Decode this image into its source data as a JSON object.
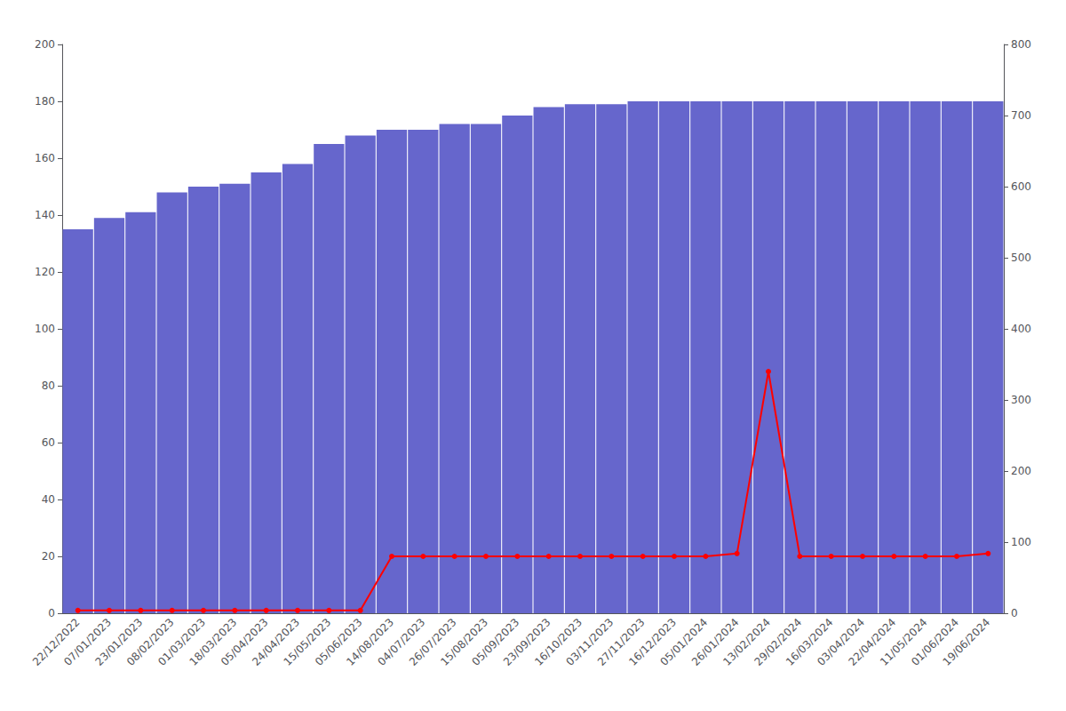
{
  "chart_data": {
    "type": "bar",
    "categories": [
      "22/12/2022",
      "07/01/2023",
      "23/01/2023",
      "08/02/2023",
      "01/03/2023",
      "18/03/2023",
      "05/04/2023",
      "24/04/2023",
      "15/05/2023",
      "05/06/2023",
      "14/08/2023",
      "04/07/2023",
      "26/07/2023",
      "15/08/2023",
      "05/09/2023",
      "23/09/2023",
      "16/10/2023",
      "03/11/2023",
      "27/11/2023",
      "16/12/2023",
      "05/01/2024",
      "26/01/2024",
      "13/02/2024",
      "29/02/2024",
      "16/03/2024",
      "03/04/2024",
      "22/04/2024",
      "11/05/2024",
      "01/06/2024",
      "19/06/2024"
    ],
    "series": [
      {
        "type": "bar",
        "color": "#6666cc",
        "values": [
          135,
          139,
          141,
          148,
          150,
          151,
          155,
          158,
          165,
          168,
          170,
          170,
          172,
          172,
          175,
          178,
          179,
          179,
          180,
          180,
          180,
          180,
          180,
          180,
          180,
          180,
          180,
          180,
          180,
          180
        ]
      },
      {
        "type": "line",
        "color": "#ff0000",
        "marker": "circle",
        "values": [
          1,
          1,
          1,
          1,
          1,
          1,
          1,
          1,
          1,
          1,
          20,
          20,
          20,
          20,
          20,
          20,
          20,
          20,
          20,
          20,
          20,
          21,
          85,
          20,
          20,
          20,
          20,
          20,
          20,
          21
        ]
      }
    ],
    "ylim": [
      0,
      200
    ],
    "yticks": [
      0,
      20,
      40,
      60,
      80,
      100,
      120,
      140,
      160,
      180,
      200
    ],
    "y2lim": [
      0,
      800
    ],
    "y2ticks": [
      0,
      100,
      200,
      300,
      400,
      500,
      600,
      700,
      800
    ],
    "grid": false
  }
}
